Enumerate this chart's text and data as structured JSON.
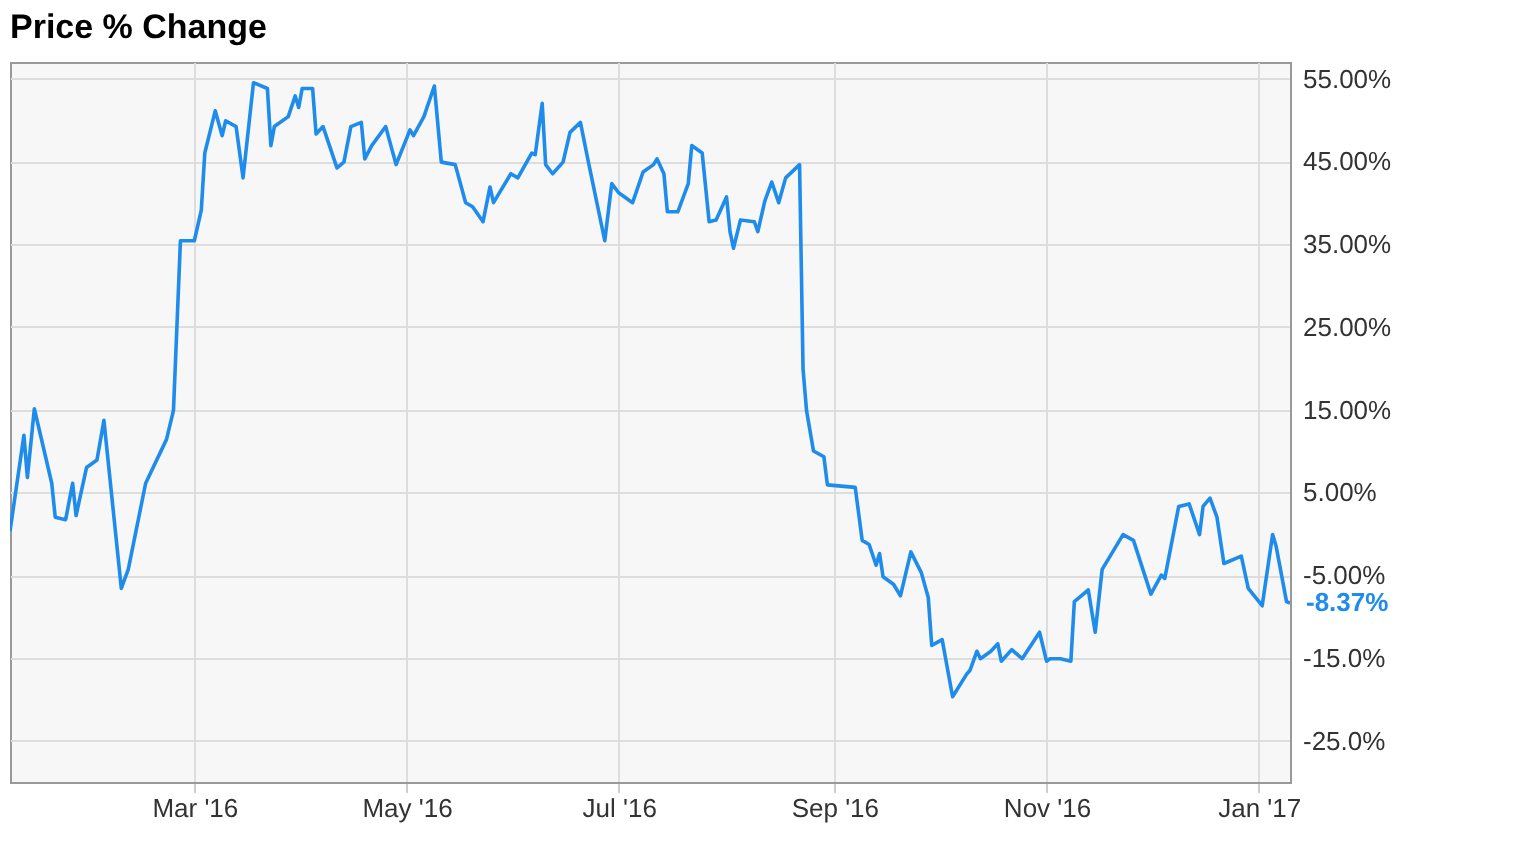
{
  "chart_data": {
    "type": "line",
    "title": "Price % Change",
    "x": [
      "2016-01-08",
      "2016-01-12",
      "2016-01-13",
      "2016-01-15",
      "2016-01-20",
      "2016-01-21",
      "2016-01-24",
      "2016-01-26",
      "2016-01-27",
      "2016-01-30",
      "2016-02-02",
      "2016-02-04",
      "2016-02-09",
      "2016-02-11",
      "2016-02-16",
      "2016-02-22",
      "2016-02-24",
      "2016-02-26",
      "2016-03-01",
      "2016-03-03",
      "2016-03-04",
      "2016-03-07",
      "2016-03-09",
      "2016-03-10",
      "2016-03-13",
      "2016-03-15",
      "2016-03-18",
      "2016-03-22",
      "2016-03-23",
      "2016-03-24",
      "2016-03-28",
      "2016-03-30",
      "2016-03-31",
      "2016-04-01",
      "2016-04-04",
      "2016-04-05",
      "2016-04-07",
      "2016-04-11",
      "2016-04-13",
      "2016-04-15",
      "2016-04-18",
      "2016-04-19",
      "2016-04-21",
      "2016-04-25",
      "2016-04-28",
      "2016-05-02",
      "2016-05-03",
      "2016-05-06",
      "2016-05-09",
      "2016-05-11",
      "2016-05-15",
      "2016-05-18",
      "2016-05-20",
      "2016-05-23",
      "2016-05-25",
      "2016-05-26",
      "2016-05-31",
      "2016-06-02",
      "2016-06-06",
      "2016-06-07",
      "2016-06-09",
      "2016-06-10",
      "2016-06-12",
      "2016-06-15",
      "2016-06-17",
      "2016-06-20",
      "2016-06-22",
      "2016-06-27",
      "2016-06-29",
      "2016-07-01",
      "2016-07-05",
      "2016-07-08",
      "2016-07-11",
      "2016-07-12",
      "2016-07-14",
      "2016-07-15",
      "2016-07-18",
      "2016-07-21",
      "2016-07-22",
      "2016-07-25",
      "2016-07-27",
      "2016-07-29",
      "2016-08-01",
      "2016-08-02",
      "2016-08-03",
      "2016-08-05",
      "2016-08-09",
      "2016-08-10",
      "2016-08-12",
      "2016-08-14",
      "2016-08-16",
      "2016-08-18",
      "2016-08-22",
      "2016-08-23",
      "2016-08-24",
      "2016-08-26",
      "2016-08-29",
      "2016-08-30",
      "2016-09-07",
      "2016-09-09",
      "2016-09-11",
      "2016-09-13",
      "2016-09-14",
      "2016-09-15",
      "2016-09-18",
      "2016-09-20",
      "2016-09-23",
      "2016-09-26",
      "2016-09-28",
      "2016-09-29",
      "2016-10-02",
      "2016-10-05",
      "2016-10-09",
      "2016-10-10",
      "2016-10-12",
      "2016-10-13",
      "2016-10-16",
      "2016-10-18",
      "2016-10-19",
      "2016-10-22",
      "2016-10-25",
      "2016-10-30",
      "2016-11-01",
      "2016-11-02",
      "2016-11-05",
      "2016-11-08",
      "2016-11-09",
      "2016-11-13",
      "2016-11-15",
      "2016-11-17",
      "2016-11-23",
      "2016-11-26",
      "2016-12-01",
      "2016-12-04",
      "2016-12-05",
      "2016-12-09",
      "2016-12-12",
      "2016-12-15",
      "2016-12-16",
      "2016-12-18",
      "2016-12-20",
      "2016-12-22",
      "2016-12-27",
      "2016-12-29",
      "2017-01-02",
      "2017-01-05",
      "2017-01-06",
      "2017-01-09",
      "2017-01-10"
    ],
    "series": [
      {
        "color": "#1f8ceb",
        "values": [
          0.3,
          11.9,
          6.8,
          15.1,
          6.1,
          2,
          1.7,
          6.1,
          2.2,
          8,
          8.9,
          13.7,
          -6.6,
          -4.3,
          6.1,
          11.4,
          14.9,
          35.4,
          35.4,
          39.1,
          46,
          51.1,
          48.1,
          49.9,
          49.2,
          43,
          54.5,
          53.8,
          46.9,
          49.2,
          50.4,
          52.9,
          51.5,
          53.8,
          53.8,
          48.3,
          49.2,
          44.2,
          44.9,
          49.2,
          49.7,
          45.3,
          46.9,
          49.2,
          44.6,
          48.8,
          48.1,
          50.4,
          54.1,
          44.9,
          44.6,
          40,
          39.5,
          37.7,
          41.9,
          40,
          43.5,
          43,
          46,
          45.8,
          52,
          44.6,
          43.5,
          44.9,
          48.5,
          49.7,
          45.5,
          35.4,
          42.3,
          41.2,
          40,
          43.7,
          44.6,
          45.3,
          43.5,
          38.9,
          38.9,
          42.3,
          46.9,
          46,
          37.7,
          37.9,
          40.7,
          36.5,
          34.5,
          37.9,
          37.7,
          36.5,
          40.2,
          42.5,
          40,
          43,
          44.6,
          19.9,
          14.9,
          10,
          9.3,
          5.9,
          5.6,
          -0.8,
          -1.3,
          -3.8,
          -2.4,
          -5.2,
          -6.1,
          -7.5,
          -2.2,
          -4.7,
          -7.7,
          -13.5,
          -12.8,
          -19.7,
          -17,
          -16.5,
          -14.2,
          -15.1,
          -14.2,
          -13.3,
          -15.4,
          -14,
          -15.1,
          -11.9,
          -15.4,
          -15.1,
          -15.1,
          -15.4,
          -8.2,
          -6.8,
          -11.9,
          -4.3,
          -0.1,
          -0.8,
          -7.3,
          -5,
          -5.4,
          3.3,
          3.6,
          -0.1,
          3.3,
          4.3,
          2,
          -3.6,
          -2.7,
          -6.6,
          -8.7,
          -0.1,
          -1.5,
          -8.2,
          -8.37
        ]
      }
    ],
    "xlim": [
      "2016-01-08",
      "2017-01-10"
    ],
    "ylim": [
      -30,
      57
    ],
    "xticks": [
      {
        "value": "2016-03-01",
        "label": "Mar '16"
      },
      {
        "value": "2016-05-01",
        "label": "May '16"
      },
      {
        "value": "2016-07-01",
        "label": "Jul '16"
      },
      {
        "value": "2016-09-01",
        "label": "Sep '16"
      },
      {
        "value": "2016-11-01",
        "label": "Nov '16"
      },
      {
        "value": "2017-01-01",
        "label": "Jan '17"
      }
    ],
    "yticks": [
      {
        "value": 55,
        "label": "55.00%"
      },
      {
        "value": 45,
        "label": "45.00%"
      },
      {
        "value": 35,
        "label": "35.00%"
      },
      {
        "value": 25,
        "label": "25.00%"
      },
      {
        "value": 15,
        "label": "15.00%"
      },
      {
        "value": 5,
        "label": "5.00%"
      },
      {
        "value": -5,
        "label": "-5.00%"
      },
      {
        "value": -15,
        "label": "-15.0%"
      },
      {
        "value": -25,
        "label": "-25.0%"
      }
    ],
    "grid": true,
    "annotations": [
      {
        "text": "-8.37%",
        "x": "2017-01-10",
        "y": -8.37
      }
    ]
  }
}
